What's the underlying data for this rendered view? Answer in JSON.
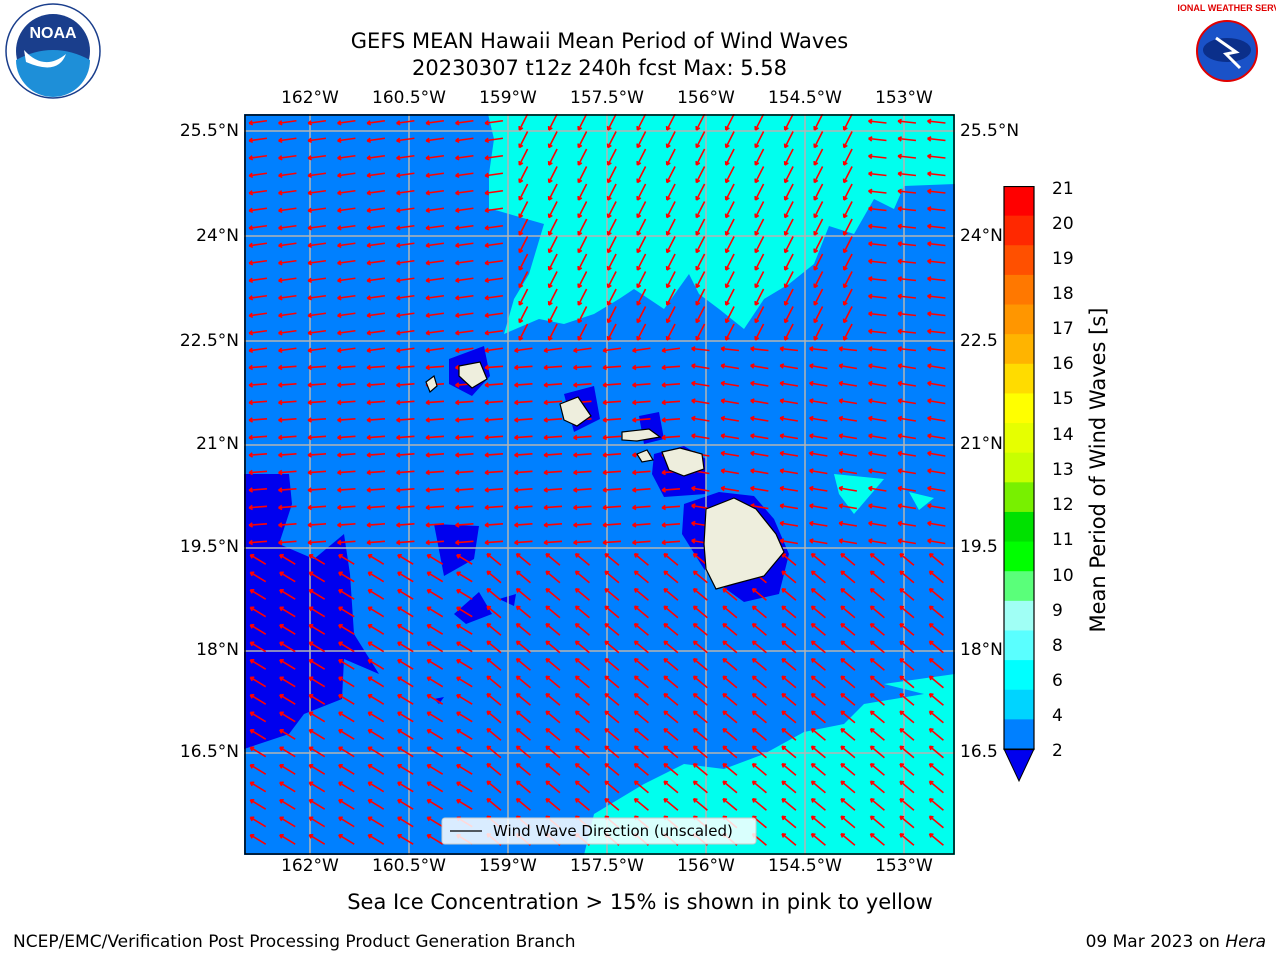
{
  "header": {
    "title_line1": "GEFS MEAN Hawaii Mean Period of Wind Waves",
    "title_line2": "20230307 t12z 240h fcst   Max: 5.58"
  },
  "logos": {
    "left": {
      "name": "noaa-logo",
      "text": "NOAA"
    },
    "right": {
      "name": "nws-logo",
      "text": "NATIONAL WEATHER SERVICE"
    }
  },
  "map": {
    "lon_ticks": [
      "162°W",
      "160.5°W",
      "159°W",
      "157.5°W",
      "156°W",
      "154.5°W",
      "153°W"
    ],
    "lat_ticks": [
      "25.5°N",
      "24°N",
      "22.5°N",
      "21°N",
      "19.5°N",
      "18°N",
      "16.5°N"
    ],
    "lat_ticks_right": [
      "25.5°N",
      "24°N",
      "22.5",
      "21°N",
      "19.5",
      "18°N",
      "16.5"
    ],
    "legend_label": "Wind Wave Direction (unscaled)",
    "colors": {
      "ocean": "#0080ff",
      "deep_blue": "#0000ee",
      "cyan": "#00ffee",
      "land": "#eeeedd",
      "arrow": "#ff0000",
      "grid": "#b4b4b4"
    }
  },
  "colorbar": {
    "label": "Mean Period of Wind Waves [s]",
    "ticks": [
      "21",
      "20",
      "19",
      "18",
      "17",
      "16",
      "15",
      "14",
      "13",
      "12",
      "11",
      "10",
      "9",
      "8",
      "6",
      "4",
      "2"
    ],
    "colors": [
      "#ff0000",
      "#ff2800",
      "#ff5000",
      "#ff7800",
      "#ff9600",
      "#ffb400",
      "#ffdc00",
      "#ffff00",
      "#e6ff00",
      "#c8ff00",
      "#78f000",
      "#00e100",
      "#00ff00",
      "#5aff7a",
      "#a0fff5",
      "#5affff",
      "#00ffff",
      "#00d4ff",
      "#0080ff"
    ],
    "under_color": "#0000ee"
  },
  "footer": {
    "ice_note": "Sea Ice Concentration > 15% is shown in pink to yellow",
    "left": "NCEP/EMC/Verification Post Processing Product Generation Branch",
    "date": "09 Mar 2023 on",
    "machine": "Hera"
  }
}
